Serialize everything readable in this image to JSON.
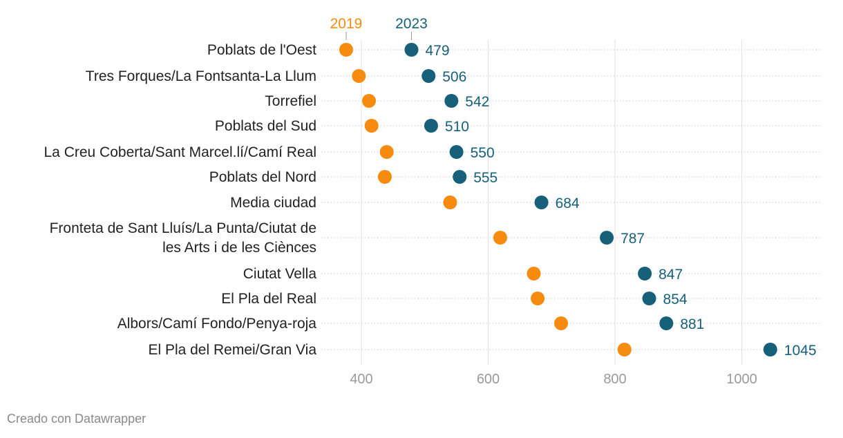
{
  "chart_data": {
    "type": "dot-range",
    "series": [
      {
        "name": "2019",
        "color": "#f68b0f"
      },
      {
        "name": "2023",
        "color": "#17607a"
      }
    ],
    "categories": [
      {
        "label": [
          "Poblats de l'Oest"
        ],
        "v2019": 376,
        "v2023": 479,
        "label2023": "479"
      },
      {
        "label": [
          "Tres Forques/La Fontsanta-La Llum"
        ],
        "v2019": 396,
        "v2023": 506,
        "label2023": "506"
      },
      {
        "label": [
          "Torrefiel"
        ],
        "v2019": 412,
        "v2023": 542,
        "label2023": "542"
      },
      {
        "label": [
          "Poblats del Sud"
        ],
        "v2019": 416,
        "v2023": 510,
        "label2023": "510"
      },
      {
        "label": [
          "La Creu Coberta/Sant Marcel.lí/Camí Real"
        ],
        "v2019": 440,
        "v2023": 550,
        "label2023": "550"
      },
      {
        "label": [
          "Poblats del Nord"
        ],
        "v2019": 437,
        "v2023": 555,
        "label2023": "555"
      },
      {
        "label": [
          "Media ciudad"
        ],
        "v2019": 540,
        "v2023": 684,
        "label2023": "684"
      },
      {
        "label": [
          "Fronteta de Sant Lluís/La Punta/Ciutat de",
          "les Arts i de les Ciènces"
        ],
        "v2019": 619,
        "v2023": 787,
        "label2023": "787"
      },
      {
        "label": [
          "Ciutat Vella"
        ],
        "v2019": 672,
        "v2023": 847,
        "label2023": "847"
      },
      {
        "label": [
          "El Pla del Real"
        ],
        "v2019": 678,
        "v2023": 854,
        "label2023": "854"
      },
      {
        "label": [
          "Albors/Camí Fondo/Penya-roja"
        ],
        "v2019": 715,
        "v2023": 881,
        "label2023": "881"
      },
      {
        "label": [
          "El Pla del Remei/Gran Via"
        ],
        "v2019": 815,
        "v2023": 1045,
        "label2023": "1045"
      }
    ],
    "x_ticks": [
      400,
      600,
      800,
      1000
    ],
    "x_range": [
      340,
      1130
    ],
    "legend": {
      "first": "2019",
      "second": "2023"
    }
  },
  "footer": {
    "credit": "Creado con Datawrapper"
  }
}
